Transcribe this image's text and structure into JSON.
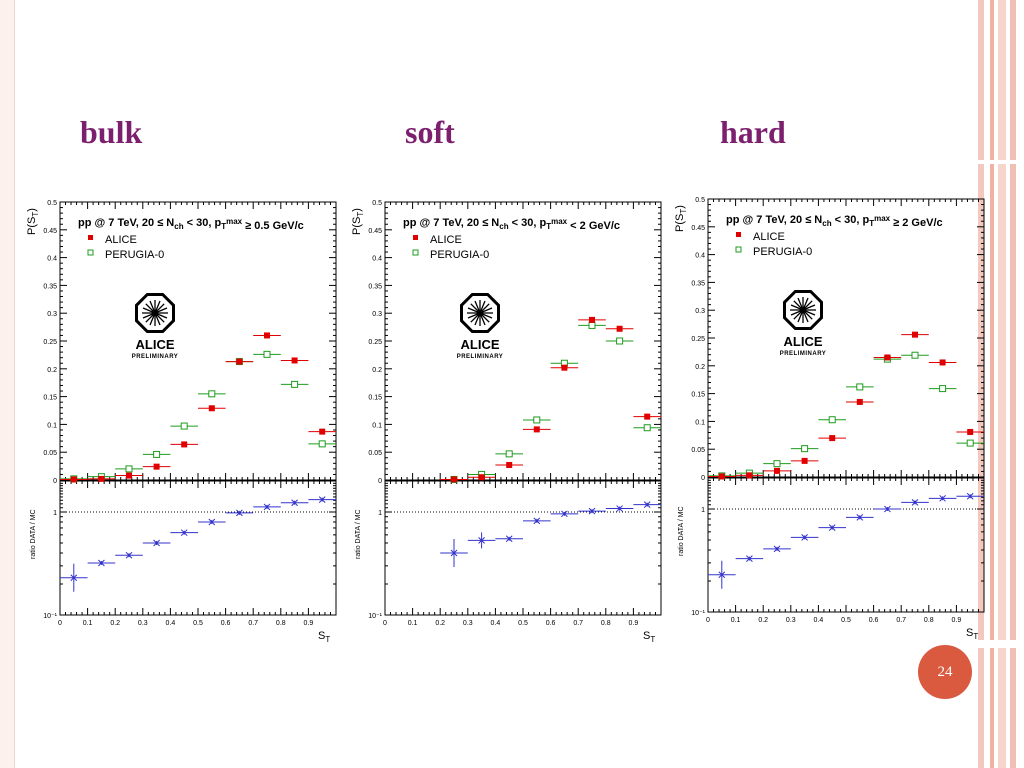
{
  "slide": {
    "headings": [
      "bulk",
      "soft",
      "hard"
    ],
    "page_number": "24"
  },
  "colors": {
    "heading": "#7b1f6e",
    "alice": "#e00000",
    "perugia": "#1e9c1e",
    "ratio": "#3333cc",
    "badge": "#d95a3e"
  },
  "chart_data": [
    {
      "type": "scatter",
      "panel": "bulk",
      "title": "pp @ 7 TeV, 20 ≤ N_ch < 30, p_T^max ≥ 0.5 GeV/c",
      "ylabel": "P(S_T)",
      "xlabel": "S_T",
      "ratio_ylabel": "ratio   DATA / MC",
      "legend": [
        "ALICE",
        "PERUGIA-0"
      ],
      "logo": [
        "ALICE",
        "PRELIMINARY"
      ],
      "xlim": [
        0,
        1
      ],
      "ylim": [
        0,
        0.5
      ],
      "ratio_ylim_log": [
        0.1,
        2.0
      ],
      "x_ticks": [
        "0",
        "0.1",
        "0.2",
        "0.3",
        "0.4",
        "0.5",
        "0.6",
        "0.7",
        "0.8",
        "0.9"
      ],
      "y_ticks": [
        "0.05",
        "0.1",
        "0.15",
        "0.2",
        "0.25",
        "0.3",
        "0.35",
        "0.4",
        "0.45",
        "0.5"
      ],
      "ratio_ticks": [
        "10⁻¹",
        "1"
      ],
      "x": [
        0.05,
        0.15,
        0.25,
        0.35,
        0.45,
        0.55,
        0.65,
        0.75,
        0.85,
        0.95
      ],
      "series": [
        {
          "name": "ALICE",
          "values": [
            0.001,
            0.002,
            0.008,
            0.024,
            0.064,
            0.129,
            0.213,
            0.26,
            0.215,
            0.087
          ]
        },
        {
          "name": "PERUGIA-0",
          "values": [
            0.002,
            0.006,
            0.02,
            0.046,
            0.097,
            0.155,
            0.213,
            0.226,
            0.172,
            0.065
          ]
        }
      ],
      "ratio": [
        0.23,
        0.32,
        0.38,
        0.5,
        0.63,
        0.8,
        0.98,
        1.12,
        1.23,
        1.32
      ]
    },
    {
      "type": "scatter",
      "panel": "soft",
      "title": "pp @ 7 TeV, 20 ≤ N_ch < 30, p_T^max < 2 GeV/c",
      "ylabel": "P(S_T)",
      "xlabel": "S_T",
      "ratio_ylabel": "ratio   DATA / MC",
      "legend": [
        "ALICE",
        "PERUGIA-0"
      ],
      "logo": [
        "ALICE",
        "PRELIMINARY"
      ],
      "xlim": [
        0,
        1
      ],
      "ylim": [
        0,
        0.5
      ],
      "ratio_ylim_log": [
        0.1,
        2.0
      ],
      "x_ticks": [
        "0",
        "0.1",
        "0.2",
        "0.3",
        "0.4",
        "0.5",
        "0.6",
        "0.7",
        "0.8",
        "0.9"
      ],
      "y_ticks": [
        "0.05",
        "0.1",
        "0.15",
        "0.2",
        "0.25",
        "0.3",
        "0.35",
        "0.4",
        "0.45",
        "0.5"
      ],
      "ratio_ticks": [
        "10⁻¹",
        "1"
      ],
      "x": [
        0.25,
        0.35,
        0.45,
        0.55,
        0.65,
        0.75,
        0.85,
        0.95
      ],
      "series": [
        {
          "name": "ALICE",
          "values": [
            0.001,
            0.005,
            0.027,
            0.091,
            0.202,
            0.288,
            0.272,
            0.114
          ]
        },
        {
          "name": "PERUGIA-0",
          "values": [
            0.001,
            0.01,
            0.047,
            0.108,
            0.21,
            0.278,
            0.25,
            0.094
          ]
        }
      ],
      "ratio": [
        0.4,
        0.53,
        0.55,
        0.82,
        0.96,
        1.02,
        1.08,
        1.18
      ]
    },
    {
      "type": "scatter",
      "panel": "hard",
      "title": "pp @ 7 TeV, 20 ≤ N_ch < 30, p_T^max ≥ 2 GeV/c",
      "ylabel": "P(S_T)",
      "xlabel": "S_T",
      "ratio_ylabel": "ratio   DATA / MC",
      "legend": [
        "ALICE",
        "PERUGIA-0"
      ],
      "logo": [
        "ALICE",
        "PRELIMINARY"
      ],
      "xlim": [
        0,
        1
      ],
      "ylim": [
        0,
        0.5
      ],
      "ratio_ylim_log": [
        0.1,
        2.0
      ],
      "x_ticks": [
        "0",
        "0.1",
        "0.2",
        "0.3",
        "0.4",
        "0.5",
        "0.6",
        "0.7",
        "0.8",
        "0.9"
      ],
      "y_ticks": [
        "0.05",
        "0.1",
        "0.15",
        "0.2",
        "0.25",
        "0.3",
        "0.35",
        "0.4",
        "0.45",
        "0.5"
      ],
      "ratio_ticks": [
        "10⁻¹",
        "1"
      ],
      "x": [
        0.05,
        0.15,
        0.25,
        0.35,
        0.45,
        0.55,
        0.65,
        0.75,
        0.85,
        0.95
      ],
      "series": [
        {
          "name": "ALICE",
          "values": [
            0.001,
            0.003,
            0.011,
            0.029,
            0.07,
            0.135,
            0.215,
            0.256,
            0.206,
            0.081
          ]
        },
        {
          "name": "PERUGIA-0",
          "values": [
            0.002,
            0.007,
            0.024,
            0.051,
            0.103,
            0.162,
            0.212,
            0.219,
            0.159,
            0.061
          ]
        }
      ],
      "ratio": [
        0.23,
        0.33,
        0.41,
        0.53,
        0.66,
        0.83,
        1.0,
        1.16,
        1.27,
        1.33
      ]
    }
  ]
}
